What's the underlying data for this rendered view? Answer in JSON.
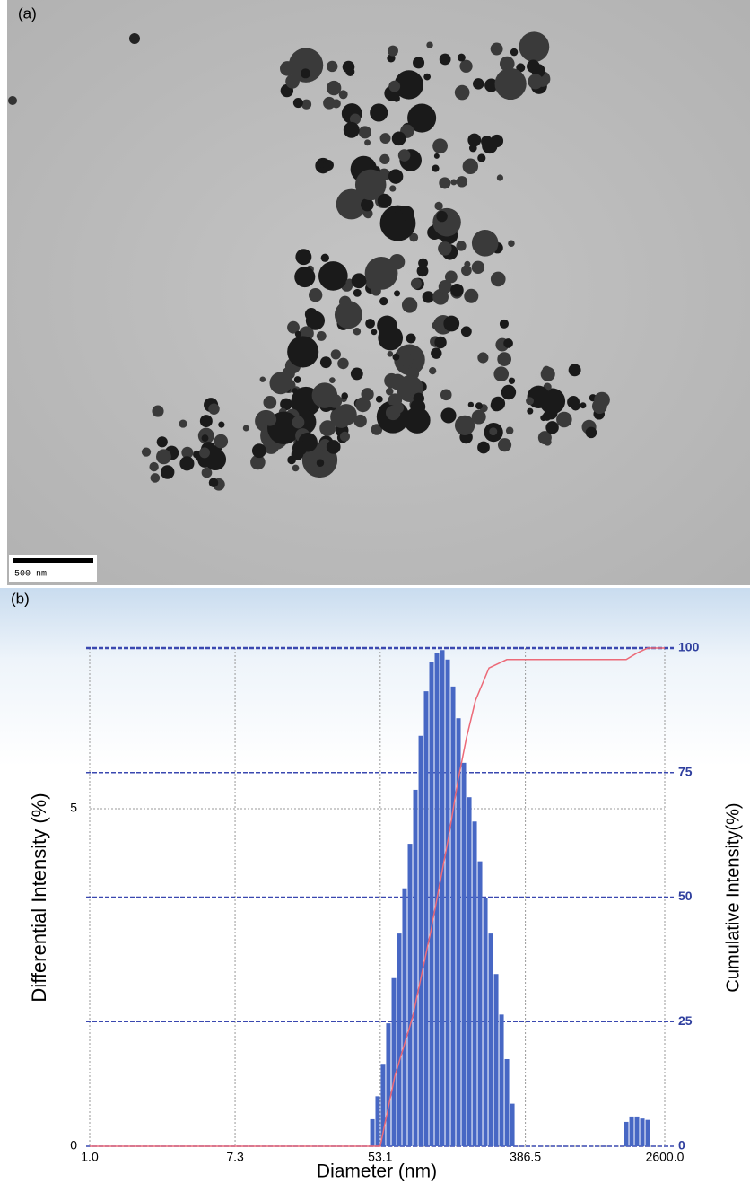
{
  "panel_a": {
    "label": "(a)",
    "scale_bar": "500 nm"
  },
  "chart_data": {
    "type": "bar",
    "label": "(b)",
    "x_label": "Diameter (nm)",
    "y_label": "Differential Intensity (%)",
    "y2_label": "Cumulative Intensity(%)",
    "log_x": true,
    "grid": true,
    "xlim": [
      1,
      2600
    ],
    "xticks": [
      {
        "value": 1,
        "label": "1.0"
      },
      7.3,
      53.1,
      386.5,
      {
        "value": 2600,
        "label": "2600.0"
      }
    ],
    "ylim": [
      0,
      7.38
    ],
    "yticks": [
      0,
      5
    ],
    "y2lim": [
      0,
      100
    ],
    "y2ticks": [
      0,
      25,
      50,
      75,
      100
    ],
    "series": [
      {
        "type": "bar",
        "color": "#4767c4",
        "x": [
          47.7,
          51.3,
          55.2,
          59.4,
          64.0,
          68.9,
          74.1,
          79.8,
          85.9,
          92.5,
          99.5,
          107.1,
          115.3,
          124.1,
          133.6,
          143.8,
          154.8,
          166.6,
          179.4,
          193.1,
          207.8,
          223.7,
          240.8,
          259.2,
          279.0,
          300.3,
          323.3,
          1535,
          1652,
          1778,
          1914,
          2060
        ],
        "values": [
          0.4,
          0.74,
          1.22,
          1.82,
          2.49,
          3.15,
          3.82,
          4.48,
          5.28,
          6.08,
          6.74,
          7.17,
          7.31,
          7.35,
          7.21,
          6.81,
          6.34,
          5.68,
          5.17,
          4.81,
          4.22,
          3.68,
          3.15,
          2.55,
          1.95,
          1.29,
          0.63,
          0.36,
          0.44,
          0.44,
          0.41,
          0.39
        ]
      },
      {
        "type": "line",
        "color": "#ec6a78",
        "axis": "y2",
        "x": [
          1,
          53.1,
          64.8,
          82.8,
          105.8,
          135.2,
          152.9,
          172.8,
          195.4,
          235,
          300,
          1535,
          1778,
          2060,
          2600
        ],
        "values": [
          0,
          0,
          14,
          26,
          43,
          62,
          73,
          82,
          89.5,
          96,
          97.7,
          97.7,
          99,
          100,
          100
        ]
      }
    ]
  }
}
